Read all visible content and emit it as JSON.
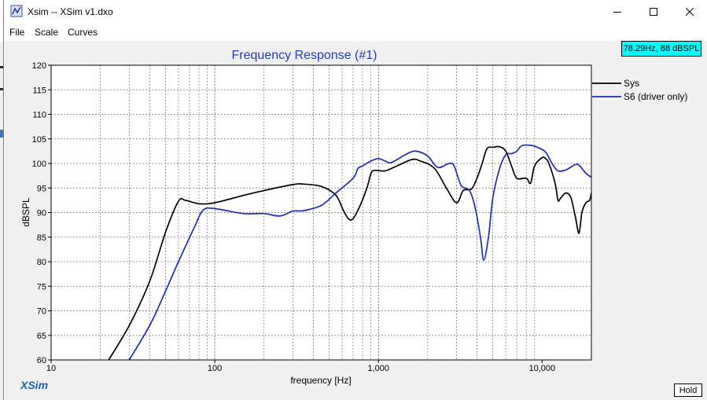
{
  "window": {
    "title": "Xsim -- XSim v1.dxo",
    "minimize_icon": "minimize-icon",
    "maximize_icon": "maximize-icon",
    "close_icon": "close-icon"
  },
  "menu": {
    "items": [
      "File",
      "Scale",
      "Curves"
    ]
  },
  "readout": "78.29Hz, 88 dBSPL",
  "hold_label": "Hold",
  "brand": "XSim",
  "colors": {
    "title": "#1f3fbf",
    "sys": "#000000",
    "driver": "#1a2fb0",
    "readout_bg": "#00ffff",
    "brand": "#1f5fa8"
  },
  "chart_data": {
    "type": "line",
    "title": "Frequency Response (#1)",
    "xlabel": "frequency [Hz]",
    "ylabel": "dBSPL",
    "xscale": "log",
    "xlim": [
      10,
      20000
    ],
    "ylim": [
      60,
      120
    ],
    "xticks": [
      {
        "value": 10,
        "label": "10"
      },
      {
        "value": 100,
        "label": "100"
      },
      {
        "value": 1000,
        "label": "1,000"
      },
      {
        "value": 10000,
        "label": "10,000"
      }
    ],
    "yticks": [
      60,
      65,
      70,
      75,
      80,
      85,
      90,
      95,
      100,
      105,
      110,
      115,
      120
    ],
    "grid": "dotted vertical minor + major",
    "legend_position": "right",
    "series": [
      {
        "name": "Sys",
        "color": "#000000",
        "points": [
          [
            22,
            59.5
          ],
          [
            30,
            67
          ],
          [
            40,
            76
          ],
          [
            50,
            86
          ],
          [
            60,
            92.3
          ],
          [
            66,
            92.5
          ],
          [
            80,
            91.8
          ],
          [
            100,
            92
          ],
          [
            150,
            93.5
          ],
          [
            200,
            94.5
          ],
          [
            300,
            95.7
          ],
          [
            350,
            95.8
          ],
          [
            450,
            95.3
          ],
          [
            550,
            93.5
          ],
          [
            620,
            90
          ],
          [
            680,
            88.5
          ],
          [
            750,
            90.5
          ],
          [
            850,
            95
          ],
          [
            900,
            98
          ],
          [
            950,
            98.6
          ],
          [
            1100,
            98.5
          ],
          [
            1300,
            99.5
          ],
          [
            1600,
            100.8
          ],
          [
            1800,
            100.5
          ],
          [
            2200,
            99
          ],
          [
            2600,
            95
          ],
          [
            3000,
            92
          ],
          [
            3300,
            94.5
          ],
          [
            3700,
            94.8
          ],
          [
            4000,
            97
          ],
          [
            4300,
            100
          ],
          [
            4600,
            103
          ],
          [
            5000,
            103.3
          ],
          [
            5500,
            103.4
          ],
          [
            6000,
            102.5
          ],
          [
            6500,
            99.5
          ],
          [
            7000,
            97
          ],
          [
            8000,
            97
          ],
          [
            8500,
            96
          ],
          [
            9000,
            99.5
          ],
          [
            10000,
            101.2
          ],
          [
            10500,
            101
          ],
          [
            11000,
            100
          ],
          [
            12000,
            96
          ],
          [
            12500,
            92.5
          ],
          [
            13000,
            93
          ],
          [
            14000,
            94
          ],
          [
            15000,
            93
          ],
          [
            16000,
            89
          ],
          [
            16800,
            85.8
          ],
          [
            17500,
            90
          ],
          [
            18500,
            92
          ],
          [
            19500,
            92.5
          ],
          [
            20000,
            94
          ]
        ]
      },
      {
        "name": "S6 (driver only)",
        "color": "#1a2fb0",
        "points": [
          [
            30,
            60
          ],
          [
            40,
            67
          ],
          [
            50,
            74
          ],
          [
            60,
            80
          ],
          [
            75,
            87
          ],
          [
            85,
            90.5
          ],
          [
            100,
            90.8
          ],
          [
            150,
            89.8
          ],
          [
            200,
            89.8
          ],
          [
            250,
            89.3
          ],
          [
            300,
            90.3
          ],
          [
            350,
            90.4
          ],
          [
            450,
            91.5
          ],
          [
            550,
            94
          ],
          [
            700,
            97
          ],
          [
            750,
            99
          ],
          [
            800,
            99.5
          ],
          [
            900,
            100.5
          ],
          [
            1000,
            101
          ],
          [
            1100,
            100.5
          ],
          [
            1200,
            100.2
          ],
          [
            1500,
            102
          ],
          [
            1700,
            102.5
          ],
          [
            2000,
            101.5
          ],
          [
            2300,
            99.2
          ],
          [
            2700,
            100
          ],
          [
            2900,
            99.5
          ],
          [
            3200,
            95.5
          ],
          [
            3600,
            94.5
          ],
          [
            3900,
            91
          ],
          [
            4200,
            85
          ],
          [
            4400,
            80.3
          ],
          [
            4700,
            85
          ],
          [
            5000,
            93
          ],
          [
            5500,
            99
          ],
          [
            6000,
            101.8
          ],
          [
            6500,
            102
          ],
          [
            7000,
            102.5
          ],
          [
            7500,
            103.6
          ],
          [
            8500,
            103.7
          ],
          [
            9500,
            103.2
          ],
          [
            10500,
            102.3
          ],
          [
            11500,
            100
          ],
          [
            12500,
            98.5
          ],
          [
            14000,
            98.7
          ],
          [
            16000,
            99.8
          ],
          [
            17000,
            99.5
          ],
          [
            18500,
            98
          ],
          [
            20000,
            97.2
          ]
        ]
      }
    ]
  }
}
